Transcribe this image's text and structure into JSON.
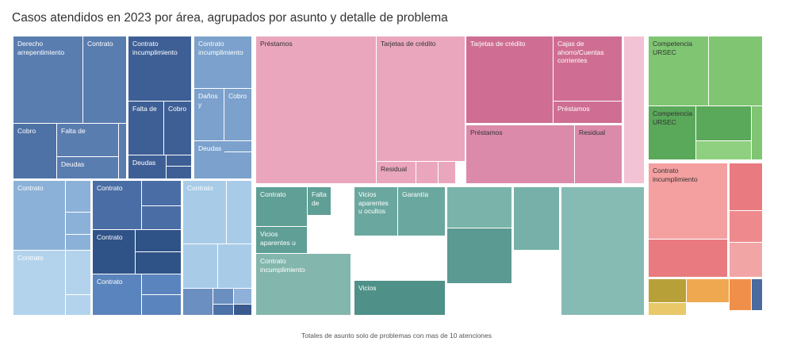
{
  "chart_data": {
    "type": "treemap",
    "title": "Casos atendidos en 2023 por área, agrupados por asunto y detalle de problema",
    "footnote": "Totales de asunto solo de problemas con mas de 10 atenciones",
    "cells": [
      {
        "group": "area-1",
        "label": "Derecho\narrepentimiento",
        "color": "#5a7db0"
      },
      {
        "group": "area-1",
        "label": "Contrato",
        "color": "#5a7db0"
      },
      {
        "group": "area-1",
        "label": "Cobro",
        "color": "#4e72a6"
      },
      {
        "group": "area-1",
        "label": "Falta de",
        "color": "#5a7db0"
      },
      {
        "group": "area-1",
        "label": "",
        "color": "#5a7db0"
      },
      {
        "group": "area-1",
        "label": "Deudas",
        "color": "#5a7db0"
      },
      {
        "group": "area-1",
        "label": "",
        "color": "#5a7db0"
      },
      {
        "group": "area-1",
        "label": "Contrato\nincumplimiento",
        "color": "#3e5f95"
      },
      {
        "group": "area-1",
        "label": "Falta de",
        "color": "#3e5f95"
      },
      {
        "group": "area-1",
        "label": "Cobro",
        "color": "#3e5f95"
      },
      {
        "group": "area-1",
        "label": "Deudas",
        "color": "#3e5f95"
      },
      {
        "group": "area-1",
        "label": "",
        "color": "#3e5f95"
      },
      {
        "group": "area-1",
        "label": "",
        "color": "#3e5f95"
      },
      {
        "group": "area-1",
        "label": "Contrato\nincumplimiento",
        "color": "#7ba1cc"
      },
      {
        "group": "area-1",
        "label": "Daños\ny",
        "color": "#7ba1cc"
      },
      {
        "group": "area-1",
        "label": "Cobro",
        "color": "#7ba1cc"
      },
      {
        "group": "area-1",
        "label": "Deudas",
        "color": "#7ba1cc"
      },
      {
        "group": "area-1",
        "label": "",
        "color": "#7ba1cc"
      },
      {
        "group": "area-1",
        "label": "Contrato",
        "color": "#8cb1d8"
      },
      {
        "group": "area-1",
        "label": "",
        "color": "#8cb1d8"
      },
      {
        "group": "area-1",
        "label": "",
        "color": "#8cb1d8"
      },
      {
        "group": "area-1",
        "label": "",
        "color": "#8cb1d8"
      },
      {
        "group": "area-1",
        "label": "Contrato",
        "color": "#b3d3ec"
      },
      {
        "group": "area-1",
        "label": "",
        "color": "#b3d3ec"
      },
      {
        "group": "area-1",
        "label": "",
        "color": "#b3d3ec"
      },
      {
        "group": "area-1",
        "label": "Contrato",
        "color": "#4a6da5"
      },
      {
        "group": "area-1",
        "label": "",
        "color": "#4a6da5"
      },
      {
        "group": "area-1",
        "label": "",
        "color": "#4a6da5"
      },
      {
        "group": "area-1",
        "label": "Contrato",
        "color": "#2f5287"
      },
      {
        "group": "area-1",
        "label": "",
        "color": "#2f5287"
      },
      {
        "group": "area-1",
        "label": "",
        "color": "#2f5287"
      },
      {
        "group": "area-1",
        "label": "Contrato",
        "color": "#5a84bd"
      },
      {
        "group": "area-1",
        "label": "",
        "color": "#5a84bd"
      },
      {
        "group": "area-1",
        "label": "",
        "color": "#5a84bd"
      },
      {
        "group": "area-1",
        "label": "Contrato",
        "color": "#a8cce8"
      },
      {
        "group": "area-1",
        "label": "",
        "color": "#a8cce8"
      },
      {
        "group": "area-1",
        "label": "",
        "color": "#a8cce8"
      },
      {
        "group": "area-1",
        "label": "",
        "color": "#a8cce8"
      },
      {
        "group": "area-1",
        "label": "",
        "color": "#6b8fc0"
      },
      {
        "group": "area-1",
        "label": "",
        "color": "#6b8fc0"
      },
      {
        "group": "area-1",
        "label": "",
        "color": "#8fb0d8"
      },
      {
        "group": "area-1",
        "label": "",
        "color": "#4d72a8"
      },
      {
        "group": "area-1",
        "label": "",
        "color": "#3a5a8e"
      },
      {
        "group": "area-2",
        "label": "Préstamos",
        "color": "#eaa6bc",
        "dark": true
      },
      {
        "group": "area-2",
        "label": "Tarjetas de crédito",
        "color": "#eaa6bc",
        "dark": true
      },
      {
        "group": "area-2",
        "label": "Residual",
        "color": "#eaa6bc",
        "dark": true
      },
      {
        "group": "area-2",
        "label": "",
        "color": "#eaa6bc"
      },
      {
        "group": "area-2",
        "label": "",
        "color": "#eaa6bc"
      },
      {
        "group": "area-2",
        "label": "Tarjetas de crédito",
        "color": "#cf6e92"
      },
      {
        "group": "area-2",
        "label": "Cajas de\nahorro/Cuentas\ncorrientes",
        "color": "#cf6e92"
      },
      {
        "group": "area-2",
        "label": "Préstamos",
        "color": "#cf6e92"
      },
      {
        "group": "area-2",
        "label": "Préstamos",
        "color": "#db8aaa",
        "dark": true
      },
      {
        "group": "area-2",
        "label": "Residual",
        "color": "#db8aaa",
        "dark": true
      },
      {
        "group": "area-2",
        "label": "",
        "color": "#f2c3d4"
      },
      {
        "group": "area-3",
        "label": "Contrato",
        "color": "#5f9f95"
      },
      {
        "group": "area-3",
        "label": "Falta\nde",
        "color": "#5f9f95"
      },
      {
        "group": "area-3",
        "label": "Vicios\naparentes u",
        "color": "#5f9f95"
      },
      {
        "group": "area-3",
        "label": "Contrato\nincumplimiento",
        "color": "#83b6ad"
      },
      {
        "group": "area-3",
        "label": "Vicios\naparentes\nu ocultos",
        "color": "#6aa89f"
      },
      {
        "group": "area-3",
        "label": "Garantía",
        "color": "#6aa89f"
      },
      {
        "group": "area-3",
        "label": "Vicios",
        "color": "#4f9188"
      },
      {
        "group": "area-3",
        "label": "",
        "color": "#7ab3aa"
      },
      {
        "group": "area-3",
        "label": "",
        "color": "#5a9a92"
      },
      {
        "group": "area-3",
        "label": "",
        "color": "#77b0a8"
      },
      {
        "group": "area-3",
        "label": "",
        "color": "#85bbb3"
      },
      {
        "group": "area-4",
        "label": "Competencia\nURSEC",
        "color": "#7fc572",
        "dark": true
      },
      {
        "group": "area-4",
        "label": "",
        "color": "#7fc572"
      },
      {
        "group": "area-4",
        "label": "Competencia\nURSEC",
        "color": "#5aa85a",
        "dark": true
      },
      {
        "group": "area-4",
        "label": "",
        "color": "#5aa85a"
      },
      {
        "group": "area-4",
        "label": "",
        "color": "#8ed080"
      },
      {
        "group": "area-4",
        "label": "",
        "color": "#7fc572"
      },
      {
        "group": "area-5",
        "label": "Contrato\nincumplimiento",
        "color": "#f4a0a0",
        "dark": true
      },
      {
        "group": "area-5",
        "label": "",
        "color": "#e97a7f"
      },
      {
        "group": "area-5",
        "label": "",
        "color": "#e97a7f"
      },
      {
        "group": "area-5",
        "label": "",
        "color": "#ee8a8e"
      },
      {
        "group": "area-5",
        "label": "",
        "color": "#f2a5a5"
      },
      {
        "group": "area-6",
        "label": "",
        "color": "#b8a038"
      },
      {
        "group": "area-6",
        "label": "",
        "color": "#f0a850"
      },
      {
        "group": "area-6",
        "label": "",
        "color": "#f08f4a"
      },
      {
        "group": "area-6",
        "label": "",
        "color": "#e8c868"
      },
      {
        "group": "area-6",
        "label": "",
        "color": "#4a6aa0"
      }
    ]
  }
}
